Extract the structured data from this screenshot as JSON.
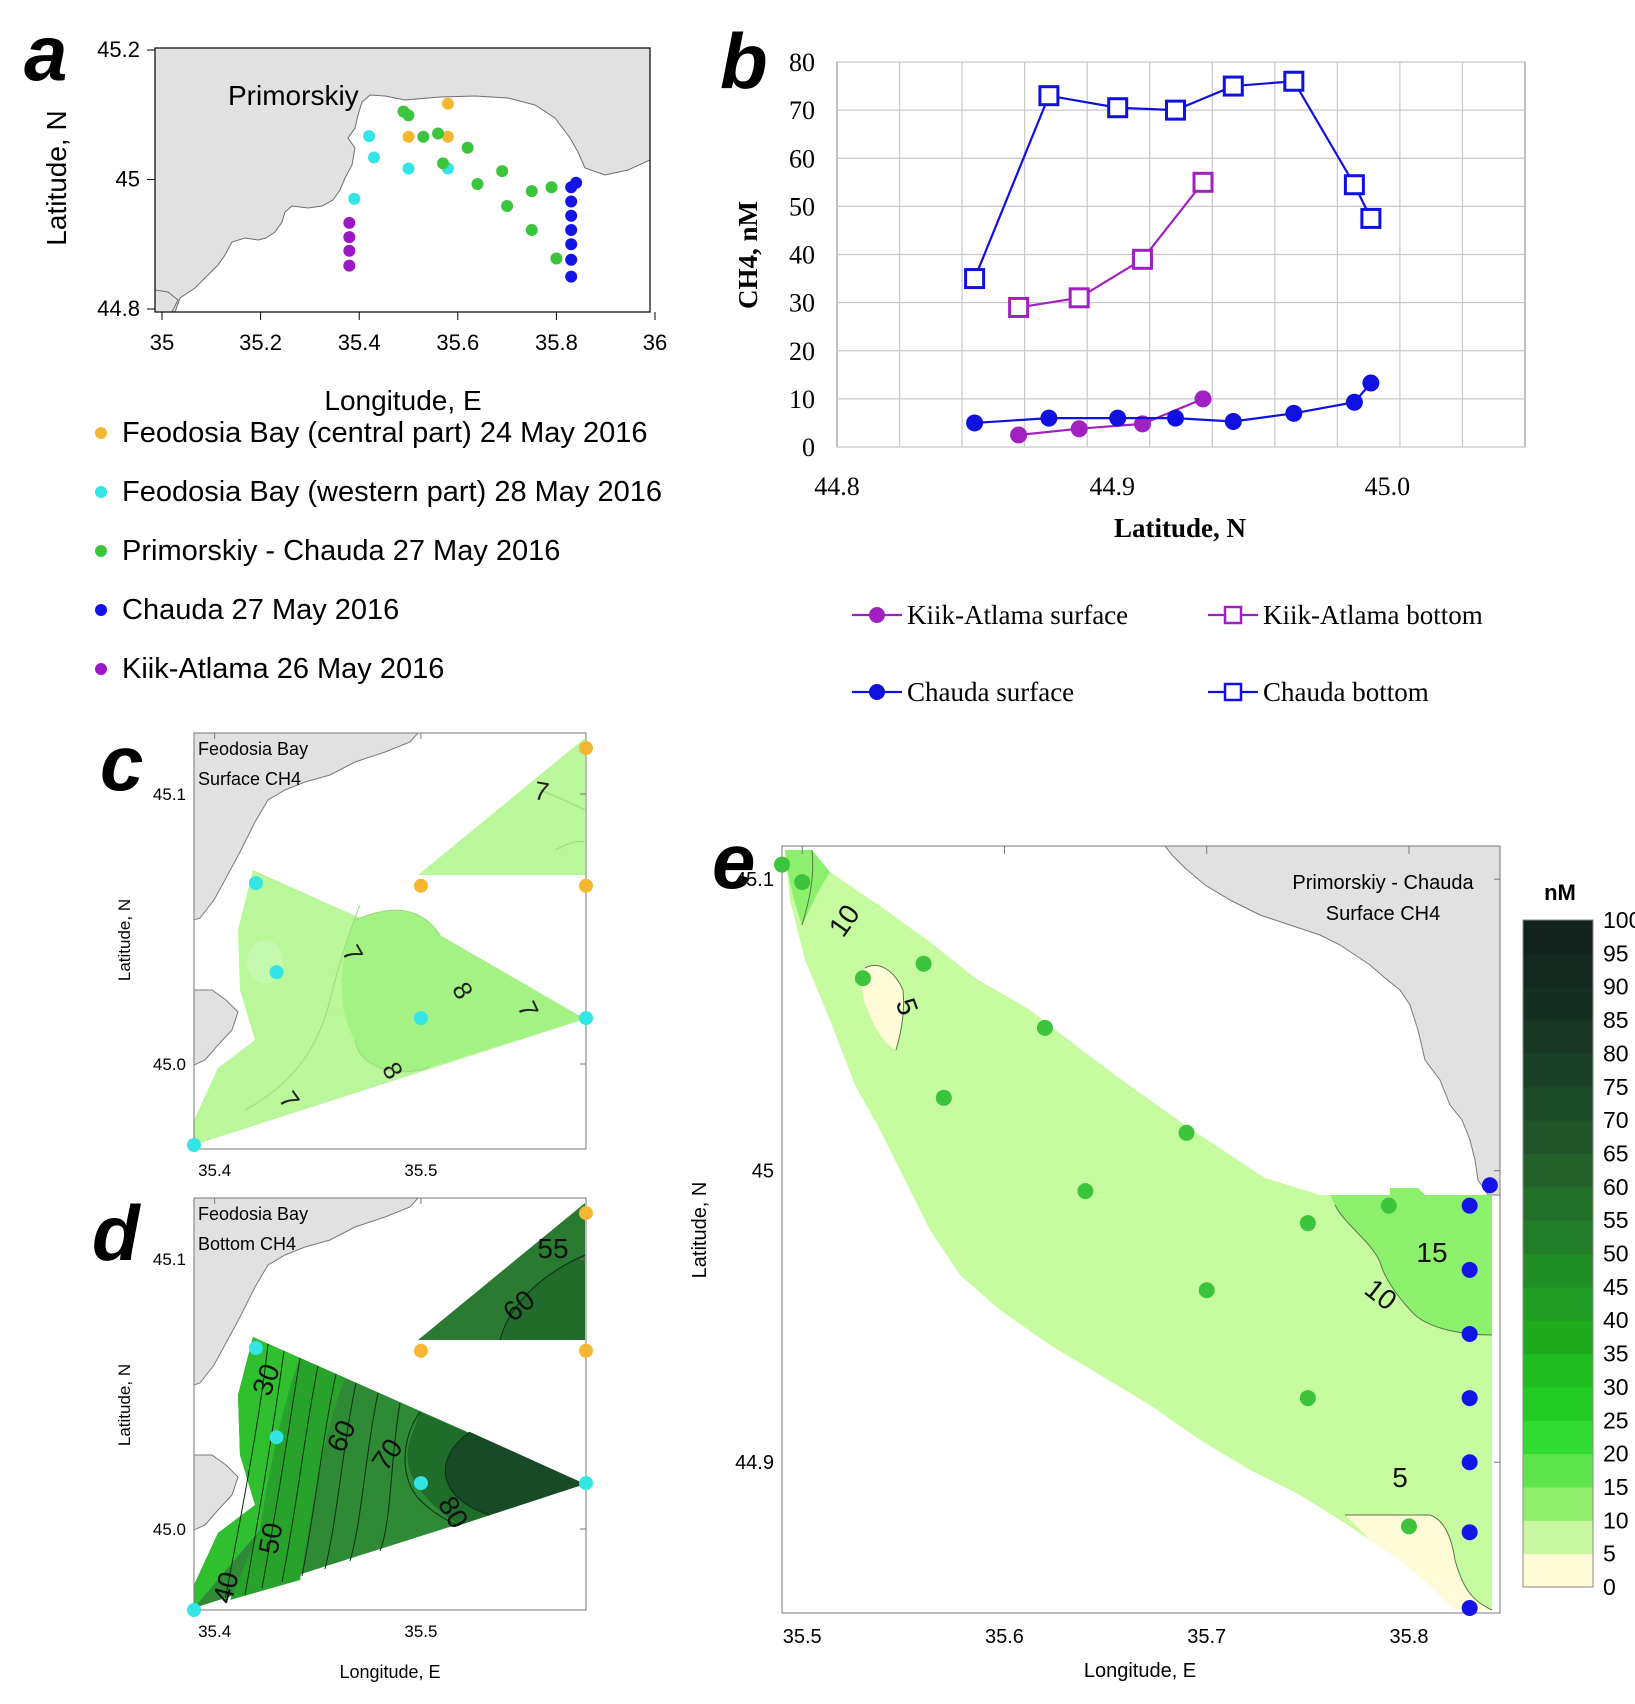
{
  "chart_data": [
    {
      "id": "a",
      "type": "scatter",
      "panel_label": "a",
      "xlabel": "Longitude, E",
      "ylabel": "Latitude, N",
      "xlim": [
        35,
        36
      ],
      "ylim": [
        44.8,
        45.2
      ],
      "xticks": [
        "35",
        "35.2",
        "35.4",
        "35.6",
        "35.8",
        "36"
      ],
      "yticks": [
        "44.8",
        "45",
        "45.2"
      ],
      "place_label": "Primorskiy",
      "series": [
        {
          "name": "Feodosia Bay (central part) 24 May 2016",
          "color": "#f5b731",
          "points": [
            [
              35.58,
              45.117
            ],
            [
              35.5,
              45.066
            ],
            [
              35.58,
              45.066
            ]
          ]
        },
        {
          "name": "Feodosia Bay (western part) 28 May 2016",
          "color": "#33e5e5",
          "points": [
            [
              35.42,
              45.067
            ],
            [
              35.43,
              45.034
            ],
            [
              35.5,
              45.017
            ],
            [
              35.58,
              45.017
            ],
            [
              35.39,
              44.97
            ]
          ]
        },
        {
          "name": "Primorskiy - Chauda 27 May 2016",
          "color": "#3cc43c",
          "points": [
            [
              35.49,
              45.105
            ],
            [
              35.5,
              45.099
            ],
            [
              35.53,
              45.066
            ],
            [
              35.56,
              45.071
            ],
            [
              35.57,
              45.025
            ],
            [
              35.62,
              45.049
            ],
            [
              35.64,
              44.993
            ],
            [
              35.69,
              45.013
            ],
            [
              35.7,
              44.959
            ],
            [
              35.75,
              44.982
            ],
            [
              35.75,
              44.922
            ],
            [
              35.79,
              44.988
            ],
            [
              35.8,
              44.878
            ]
          ]
        },
        {
          "name": "Chauda 27 May 2016",
          "color": "#1414e6",
          "points": [
            [
              35.84,
              44.995
            ],
            [
              35.83,
              44.988
            ],
            [
              35.83,
              44.966
            ],
            [
              35.83,
              44.944
            ],
            [
              35.83,
              44.922
            ],
            [
              35.83,
              44.9
            ],
            [
              35.83,
              44.876
            ],
            [
              35.83,
              44.85
            ]
          ]
        },
        {
          "name": "Kiik-Atlama 26 May 2016",
          "color": "#9b19c2",
          "points": [
            [
              35.38,
              44.933
            ],
            [
              35.38,
              44.911
            ],
            [
              35.38,
              44.89
            ],
            [
              35.38,
              44.867
            ]
          ]
        }
      ]
    },
    {
      "id": "b",
      "type": "line",
      "panel_label": "b",
      "xlabel": "Latitude, N",
      "ylabel": "CH4, nM",
      "xlim": [
        44.8,
        45.05
      ],
      "ylim": [
        0,
        80
      ],
      "xticks": [
        "44.8",
        "44.9",
        "45.0"
      ],
      "yticks": [
        "0",
        "10",
        "20",
        "30",
        "40",
        "50",
        "60",
        "70",
        "80"
      ],
      "series": [
        {
          "name": "Kiik-Atlama surface",
          "color": "#a020c0",
          "marker": "filled-circle",
          "x": [
            44.866,
            44.888,
            44.911,
            44.933
          ],
          "y": [
            2.5,
            3.8,
            4.8,
            10
          ]
        },
        {
          "name": "Kiik-Atlama bottom",
          "color": "#a020c0",
          "marker": "open-square",
          "x": [
            44.866,
            44.888,
            44.911,
            44.933
          ],
          "y": [
            29,
            31,
            39,
            55
          ]
        },
        {
          "name": "Chauda surface",
          "color": "#1010e0",
          "marker": "filled-circle",
          "x": [
            44.85,
            44.877,
            44.902,
            44.923,
            44.944,
            44.966,
            44.988,
            44.994
          ],
          "y": [
            5,
            6,
            6,
            6,
            5.3,
            7,
            9.3,
            13.3
          ]
        },
        {
          "name": "Chauda bottom",
          "color": "#1010e0",
          "marker": "open-square",
          "x": [
            44.85,
            44.877,
            44.902,
            44.923,
            44.944,
            44.966,
            44.988,
            44.994
          ],
          "y": [
            35,
            73,
            70.5,
            70,
            75,
            76,
            54.5,
            47.5
          ]
        }
      ]
    },
    {
      "id": "c",
      "type": "heatmap",
      "panel_label": "c",
      "title": "Feodosia Bay",
      "subtitle": "Surface CH4",
      "ylabel": "Latitude, N",
      "xlim": [
        35.39,
        35.58
      ],
      "ylim": [
        44.97,
        45.12
      ],
      "xticks": [
        "35.4",
        "35.5"
      ],
      "yticks": [
        "45.0",
        "45.1"
      ],
      "contour_labels": [
        "7",
        "7",
        "8",
        "7",
        "8",
        "7"
      ]
    },
    {
      "id": "d",
      "type": "heatmap",
      "panel_label": "d",
      "title": "Feodosia Bay",
      "subtitle": "Bottom CH4",
      "xlabel": "Longitude, E",
      "ylabel": "Latitude, N",
      "xlim": [
        35.39,
        35.58
      ],
      "ylim": [
        44.97,
        45.12
      ],
      "xticks": [
        "35.4",
        "35.5"
      ],
      "yticks": [
        "45.0",
        "45.1"
      ],
      "contour_labels": [
        "55",
        "60",
        "30",
        "60",
        "70",
        "80",
        "50",
        "40"
      ]
    },
    {
      "id": "e",
      "type": "heatmap",
      "panel_label": "e",
      "title": "Primorskiy - Chauda",
      "subtitle": "Surface CH4",
      "xlabel": "Longitude, E",
      "ylabel": "Latitude, N",
      "xlim": [
        35.49,
        35.845
      ],
      "ylim": [
        44.85,
        45.11
      ],
      "xticks": [
        "35.5",
        "35.6",
        "35.7",
        "35.8"
      ],
      "yticks": [
        "44.9",
        "45",
        "45.1"
      ],
      "contour_labels": [
        "10",
        "5",
        "15",
        "10",
        "5"
      ],
      "colorbar": {
        "unit": "nM",
        "levels": [
          "0",
          "5",
          "10",
          "15",
          "20",
          "25",
          "30",
          "35",
          "40",
          "45",
          "50",
          "55",
          "60",
          "65",
          "70",
          "75",
          "80",
          "85",
          "90",
          "95",
          "100"
        ],
        "colors": [
          "#fffbd6",
          "#c8f7a0",
          "#8eee6c",
          "#5ce64a",
          "#2fdc2f",
          "#22cc22",
          "#20bd20",
          "#1eac1e",
          "#1f9c22",
          "#208d25",
          "#217d27",
          "#226f29",
          "#22622a",
          "#20562a",
          "#1d4b29",
          "#1a4127",
          "#183825",
          "#153022",
          "#13291f",
          "#11231c"
        ]
      }
    }
  ]
}
